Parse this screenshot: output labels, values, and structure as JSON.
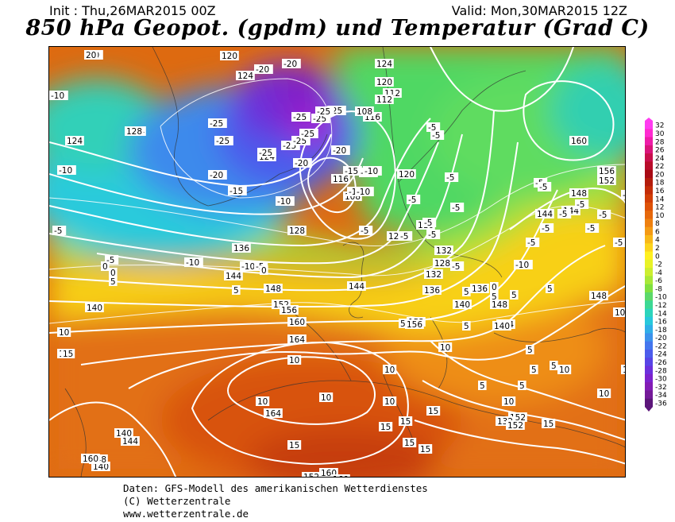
{
  "header": {
    "init": "Init : Thu,26MAR2015 00Z",
    "valid": "Valid: Mon,30MAR2015 12Z",
    "title": "850 hPa Geopot. (gpdm) und Temperatur (Grad C)"
  },
  "legend": {
    "labels": [
      "32",
      "30",
      "28",
      "26",
      "24",
      "22",
      "20",
      "18",
      "16",
      "14",
      "12",
      "10",
      "8",
      "6",
      "4",
      "2",
      "0",
      "-2",
      "-4",
      "-6",
      "-8",
      "-10",
      "-12",
      "-14",
      "-16",
      "-18",
      "-20",
      "-22",
      "-24",
      "-26",
      "-28",
      "-30",
      "-32",
      "-34",
      "-36"
    ],
    "colors": [
      "#ff3cf0",
      "#ff2ad0",
      "#ee1ca8",
      "#d9147a",
      "#c80f4c",
      "#b80c2a",
      "#a80a14",
      "#b31c0c",
      "#c42c08",
      "#d23e06",
      "#de5208",
      "#e6680c",
      "#ee8010",
      "#f49a14",
      "#f8b818",
      "#fcd41c",
      "#fff020",
      "#e8f228",
      "#ccee30",
      "#a8e838",
      "#80e040",
      "#5cd86a",
      "#3cd894",
      "#2cd4bc",
      "#28c8dc",
      "#30aee8",
      "#3c92ec",
      "#4476ee",
      "#4c5cec",
      "#5844e6",
      "#6c30dc",
      "#7c22cc",
      "#821cb4",
      "#741a98",
      "#5c167a"
    ]
  },
  "map_labels": {
    "geopotential": [
      "124",
      "124",
      "120",
      "124",
      "128",
      "124",
      "124",
      "120",
      "112",
      "116",
      "108",
      "112",
      "108",
      "116",
      "120",
      "116",
      "124",
      "128",
      "128",
      "132",
      "136",
      "132",
      "136",
      "140",
      "144",
      "144",
      "148",
      "140",
      "144",
      "148",
      "152",
      "156",
      "160",
      "164",
      "164",
      "152",
      "156",
      "160",
      "152",
      "156",
      "148",
      "144",
      "144",
      "148",
      "148",
      "152",
      "140",
      "148",
      "144",
      "140",
      "140",
      "136",
      "132",
      "152",
      "152",
      "160",
      "160",
      "160"
    ],
    "temperature": [
      "-10",
      "-10",
      "-20",
      "-20",
      "-25",
      "-25",
      "-25",
      "-25",
      "-25",
      "-25",
      "-25",
      "-25",
      "-25",
      "-25",
      "-20",
      "-20",
      "-20",
      "-15",
      "-15",
      "-15",
      "-10",
      "-10",
      "-10",
      "-10",
      "-10",
      "-5",
      "-5",
      "-5",
      "-5",
      "-5",
      "-5",
      "-5",
      "-5",
      "-5",
      "-5",
      "-5",
      "-5",
      "-5",
      "-5",
      "-5",
      "-5",
      "-5",
      "-5",
      "-5",
      "-5",
      "-10",
      "-10",
      "-10",
      "-5",
      "-5",
      "-5",
      "0",
      "0",
      "0",
      "0",
      "5",
      "5",
      "5",
      "5",
      "5",
      "5",
      "5",
      "5",
      "5",
      "5",
      "5",
      "5",
      "5",
      "10",
      "10",
      "10",
      "10",
      "10",
      "10",
      "10",
      "10",
      "10",
      "10",
      "10",
      "10",
      "10",
      "15",
      "15",
      "15",
      "15",
      "15",
      "15",
      "15",
      "15",
      "20"
    ]
  },
  "credits": {
    "line1": "Daten: GFS-Modell des amerikanischen Wetterdienstes",
    "line2": "(C) Wetterzentrale",
    "line3": "www.wetterzentrale.de"
  }
}
